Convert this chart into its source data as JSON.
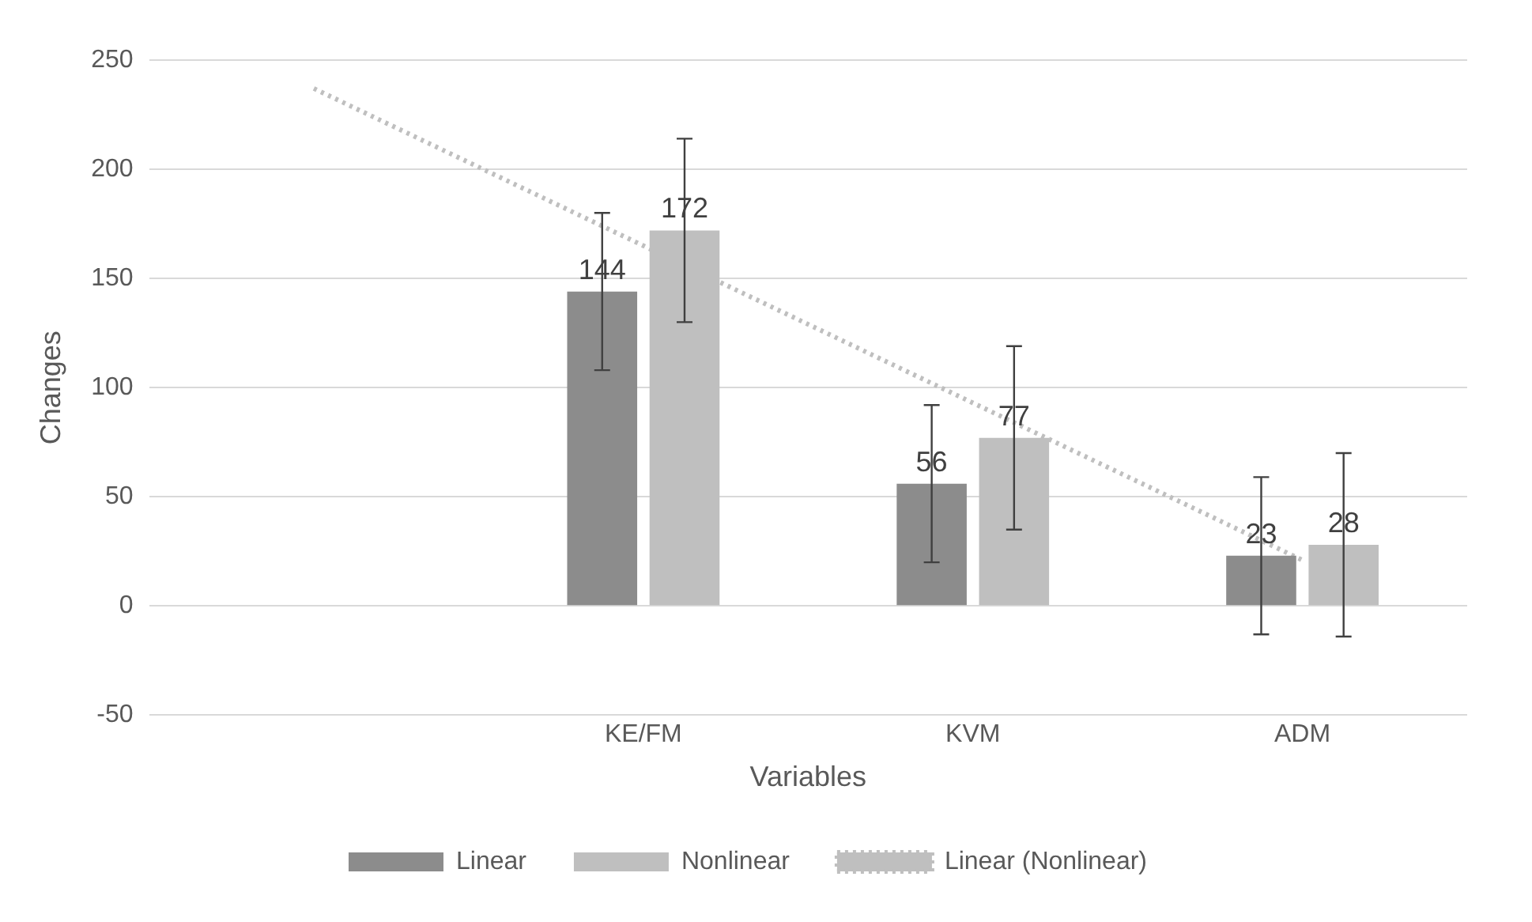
{
  "chart_data": {
    "type": "bar",
    "xlabel": "Variables",
    "ylabel": "Changes",
    "categories": [
      null,
      "KE/FM",
      "KVM",
      "ADM"
    ],
    "series": [
      {
        "name": "Linear",
        "color": "#8c8c8c",
        "values": [
          null,
          144,
          56,
          23
        ],
        "value_labels": [
          null,
          "144",
          "56",
          "23"
        ],
        "errors": [
          null,
          36,
          36,
          36
        ]
      },
      {
        "name": "Nonlinear",
        "color": "#bfbfbf",
        "values": [
          null,
          172,
          77,
          28
        ],
        "value_labels": [
          null,
          "172",
          "77",
          "28"
        ],
        "errors": [
          null,
          42,
          42,
          42
        ]
      },
      {
        "name": "Linear (Nonlinear)",
        "type": "line",
        "color": "#bfbfbf",
        "line_style": "dotted",
        "marker": "none",
        "values": [
          237,
          165,
          93,
          21
        ]
      }
    ],
    "ylim": [
      -50,
      250
    ],
    "yticks": [
      -50,
      0,
      50,
      100,
      150,
      200,
      250
    ],
    "grid": "y",
    "legend": "bottom"
  }
}
